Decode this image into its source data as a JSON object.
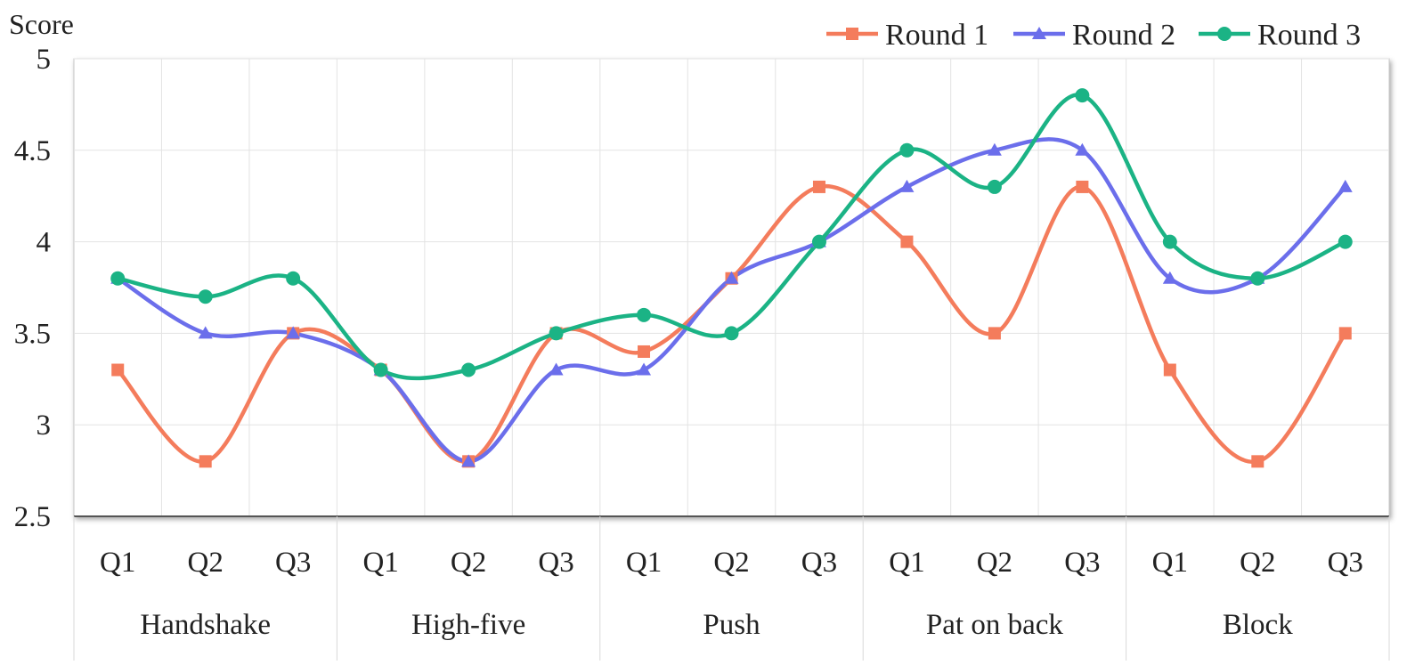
{
  "chart_data": {
    "type": "line",
    "title": "",
    "ylabel": "Score",
    "xlabel": "",
    "ylim": [
      2.5,
      5
    ],
    "yticks": [
      "2.5",
      "3",
      "3.5",
      "4",
      "4.5",
      "5"
    ],
    "grid": true,
    "legend_position": "top-right",
    "groups": [
      {
        "label": "Handshake",
        "categories": [
          "Q1",
          "Q2",
          "Q3"
        ]
      },
      {
        "label": "High-five",
        "categories": [
          "Q1",
          "Q2",
          "Q3"
        ]
      },
      {
        "label": "Push",
        "categories": [
          "Q1",
          "Q2",
          "Q3"
        ]
      },
      {
        "label": "Pat on back",
        "categories": [
          "Q1",
          "Q2",
          "Q3"
        ]
      },
      {
        "label": "Block",
        "categories": [
          "Q1",
          "Q2",
          "Q3"
        ]
      }
    ],
    "series": [
      {
        "name": "Round 1",
        "color": "#F47C5C",
        "marker": "square",
        "values": [
          3.3,
          2.8,
          3.5,
          3.3,
          2.8,
          3.5,
          3.4,
          3.8,
          4.3,
          4.0,
          3.5,
          4.3,
          3.3,
          2.8,
          3.5
        ]
      },
      {
        "name": "Round 2",
        "color": "#6B6EEB",
        "marker": "triangle",
        "values": [
          3.8,
          3.5,
          3.5,
          3.3,
          2.8,
          3.3,
          3.3,
          3.8,
          4.0,
          4.3,
          4.5,
          4.5,
          3.8,
          3.8,
          4.3
        ]
      },
      {
        "name": "Round 3",
        "color": "#1BB385",
        "marker": "circle",
        "values": [
          3.8,
          3.7,
          3.8,
          3.3,
          3.3,
          3.5,
          3.6,
          3.5,
          4.0,
          4.5,
          4.3,
          4.8,
          4.0,
          3.8,
          4.0
        ]
      }
    ]
  }
}
